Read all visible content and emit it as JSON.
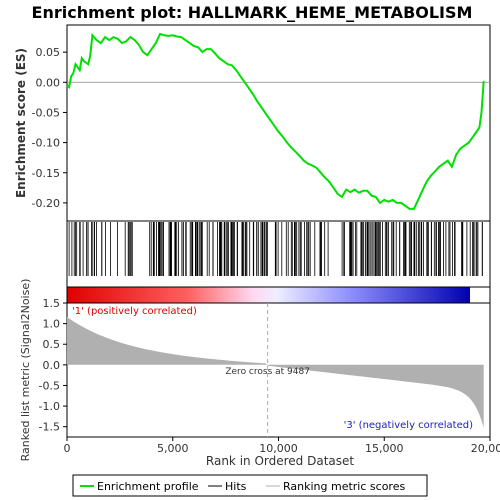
{
  "chart_data": {
    "type": "line",
    "title": "Enrichment plot: HALLMARK_HEME_METABOLISM",
    "es_panel": {
      "ylabel": "Enrichment score (ES)",
      "ylim": [
        -0.23,
        0.095
      ],
      "yticks": [
        0.05,
        0.0,
        -0.05,
        -0.1,
        -0.15,
        -0.2
      ],
      "ytick_labels": [
        "0.05",
        "0.00",
        "-0.05",
        "-0.10",
        "-0.15",
        "-0.20"
      ],
      "grid": false
    },
    "metric_panel": {
      "ylabel": "Ranked list metric (Signal2Noise)",
      "ylim": [
        -1.75,
        1.5
      ],
      "yticks": [
        1.5,
        1.0,
        0.5,
        0.0,
        -0.5,
        -1.0,
        -1.5
      ],
      "ytick_labels": [
        "1.5",
        "1.0",
        "0.5",
        "0.0",
        "-0.5",
        "-1.0",
        "-1.5"
      ],
      "grid": false,
      "zero_cross_label": "Zero cross at 9487",
      "zero_cross_rank": 9487,
      "positive_label": "'1' (positively correlated)",
      "negative_label": "'3' (negatively correlated)"
    },
    "xlabel": "Rank in Ordered Dataset",
    "xlim": [
      0,
      20000
    ],
    "xticks": [
      0,
      5000,
      10000,
      15000,
      20000
    ],
    "xtick_labels": [
      "0",
      "5,000",
      "10,000",
      "15,000",
      "20,000"
    ],
    "total_genes": 19700,
    "series": [
      {
        "name": "Enrichment profile",
        "color": "#00e000",
        "x": [
          0,
          100,
          200,
          300,
          400,
          600,
          700,
          800,
          1000,
          1100,
          1200,
          1400,
          1600,
          1800,
          2000,
          2200,
          2400,
          2600,
          2800,
          3000,
          3200,
          3400,
          3600,
          3800,
          4000,
          4200,
          4400,
          4600,
          4800,
          5000,
          5200,
          5400,
          5600,
          5800,
          6000,
          6200,
          6400,
          6600,
          6800,
          7000,
          7200,
          7400,
          7600,
          7800,
          8000,
          8200,
          8400,
          8600,
          8800,
          9000,
          9200,
          9400,
          9600,
          9800,
          10000,
          10200,
          10400,
          10600,
          10800,
          11000,
          11200,
          11400,
          11600,
          11800,
          12000,
          12200,
          12400,
          12600,
          12800,
          13000,
          13200,
          13400,
          13600,
          13800,
          14000,
          14200,
          14400,
          14600,
          14800,
          15000,
          15200,
          15400,
          15600,
          15800,
          16000,
          16200,
          16400,
          16600,
          16800,
          17000,
          17200,
          17400,
          17600,
          17800,
          18000,
          18200,
          18400,
          18600,
          18800,
          19000,
          19200,
          19400,
          19500,
          19600,
          19700
        ],
        "y": [
          -0.005,
          -0.008,
          0.01,
          0.015,
          0.03,
          0.02,
          0.04,
          0.035,
          0.03,
          0.045,
          0.078,
          0.07,
          0.065,
          0.075,
          0.07,
          0.075,
          0.072,
          0.065,
          0.068,
          0.075,
          0.07,
          0.062,
          0.05,
          0.045,
          0.055,
          0.065,
          0.08,
          0.078,
          0.077,
          0.078,
          0.076,
          0.075,
          0.07,
          0.065,
          0.06,
          0.058,
          0.05,
          0.055,
          0.055,
          0.048,
          0.04,
          0.035,
          0.03,
          0.028,
          0.02,
          0.01,
          0.0,
          -0.01,
          -0.02,
          -0.032,
          -0.042,
          -0.052,
          -0.062,
          -0.072,
          -0.082,
          -0.09,
          -0.1,
          -0.108,
          -0.115,
          -0.122,
          -0.13,
          -0.135,
          -0.138,
          -0.142,
          -0.15,
          -0.158,
          -0.165,
          -0.175,
          -0.185,
          -0.19,
          -0.178,
          -0.182,
          -0.178,
          -0.183,
          -0.18,
          -0.18,
          -0.188,
          -0.19,
          -0.2,
          -0.195,
          -0.198,
          -0.195,
          -0.2,
          -0.2,
          -0.205,
          -0.21,
          -0.21,
          -0.195,
          -0.18,
          -0.165,
          -0.155,
          -0.148,
          -0.14,
          -0.135,
          -0.13,
          -0.14,
          -0.12,
          -0.11,
          -0.105,
          -0.1,
          -0.09,
          -0.08,
          -0.075,
          -0.05,
          0.002
        ]
      }
    ],
    "legend": {
      "placement": "bottom",
      "entries": [
        "Enrichment profile",
        "Hits",
        "Ranking metric scores"
      ]
    },
    "colors": {
      "profile": "#00e000",
      "hits": "#000000",
      "metric": "#b0b0b0",
      "positive": "#ff0000",
      "negative": "#0000ff",
      "zero_line": "#aaaaaa"
    }
  }
}
